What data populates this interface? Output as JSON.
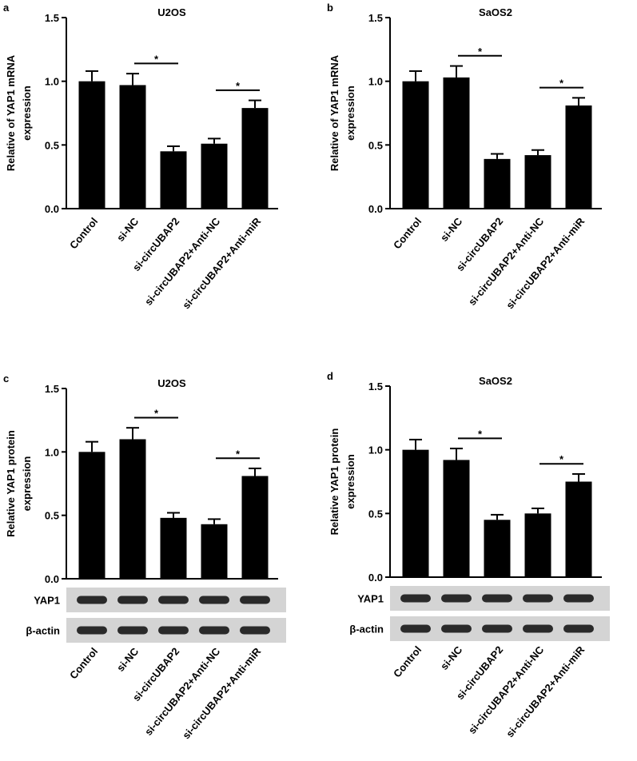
{
  "chart_data": [
    {
      "type": "bar",
      "panel": "a",
      "title": "U2OS",
      "ylabel": [
        "Relative of YAP1 mRNA",
        "expression"
      ],
      "categories": [
        "Control",
        "si-NC",
        "si-circUBAP2",
        "si-circUBAP2+Anti-NC",
        "si-circUBAP2+Anti-miR"
      ],
      "values": [
        1.0,
        0.97,
        0.45,
        0.51,
        0.79
      ],
      "errors": [
        0.08,
        0.09,
        0.04,
        0.04,
        0.06
      ],
      "color": "#000000",
      "ylim": [
        0,
        1.5
      ],
      "yticks": [
        {
          "value": 0,
          "label": "0.0"
        },
        0.5,
        {
          "value": 1,
          "label": "1.0"
        },
        1.5
      ],
      "annotations": [
        "*",
        "*"
      ]
    },
    {
      "type": "bar",
      "panel": "b",
      "title": "SaOS2",
      "ylabel": [
        "Relative of YAP1 mRNA",
        "expression"
      ],
      "categories": [
        "Control",
        "si-NC",
        "si-circUBAP2",
        "si-circUBAP2+Anti-NC",
        "si-circUBAP2+Anti-miR"
      ],
      "values": [
        1.0,
        1.03,
        0.39,
        0.42,
        0.81
      ],
      "errors": [
        0.08,
        0.09,
        0.04,
        0.04,
        0.06
      ],
      "color": "#000000",
      "ylim": [
        0,
        1.5
      ],
      "yticks": [
        {
          "value": 0,
          "label": "0.0"
        },
        0.5,
        {
          "value": 1,
          "label": "1.0"
        },
        1.5
      ],
      "annotations": [
        "*",
        "*"
      ]
    },
    {
      "type": "bar",
      "panel": "c",
      "title": "U2OS",
      "ylabel": [
        "Relative YAP1 protein",
        "expression"
      ],
      "categories": [
        "Control",
        "si-NC",
        "si-circUBAP2",
        "si-circUBAP2+Anti-NC",
        "si-circUBAP2+Anti-miR"
      ],
      "values": [
        1.0,
        1.1,
        0.48,
        0.43,
        0.81
      ],
      "errors": [
        0.08,
        0.09,
        0.04,
        0.04,
        0.06
      ],
      "color": "#000000",
      "ylim": [
        0,
        1.5
      ],
      "yticks": [
        {
          "value": 0,
          "label": "0.0"
        },
        0.5,
        {
          "value": 1,
          "label": "1.0"
        },
        1.5
      ],
      "annotations": [
        "*",
        "*"
      ],
      "blot_labels": [
        "YAP1",
        "β-actin"
      ]
    },
    {
      "type": "bar",
      "panel": "d",
      "title": "SaOS2",
      "ylabel": [
        "Relative YAP1 protein",
        "expression"
      ],
      "categories": [
        "Control",
        "si-NC",
        "si-circUBAP2",
        "si-circUBAP2+Anti-NC",
        "si-circUBAP2+Anti-miR"
      ],
      "values": [
        1.0,
        0.92,
        0.45,
        0.5,
        0.75
      ],
      "errors": [
        0.08,
        0.09,
        0.04,
        0.04,
        0.06
      ],
      "color": "#000000",
      "ylim": [
        0,
        1.5
      ],
      "yticks": [
        {
          "value": 0,
          "label": "0.0"
        },
        0.5,
        {
          "value": 1,
          "label": "1.0"
        },
        1.5
      ],
      "annotations": [
        "*",
        "*"
      ],
      "blot_labels": [
        "YAP1",
        "β-actin"
      ]
    }
  ]
}
